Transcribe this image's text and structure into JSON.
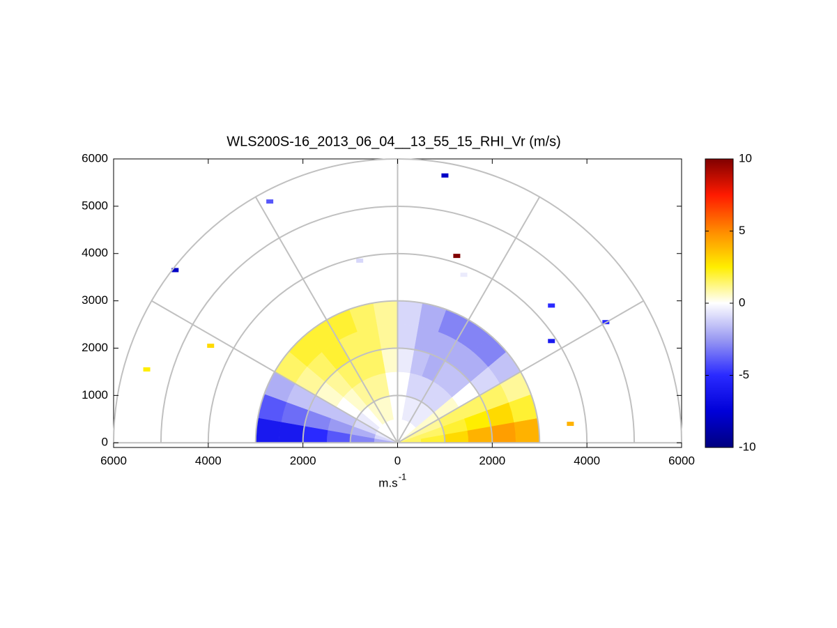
{
  "chart_data": {
    "type": "polar-heatmap",
    "title": "WLS200S-16_2013_06_04__13_55_15_RHI_Vr (m/s)",
    "xlabel": "m.s",
    "xlabel_sup": "-1",
    "xlim": [
      -6000,
      6000
    ],
    "ylim": [
      -100,
      6000
    ],
    "xticks": [
      {
        "value": -6000,
        "label": "6000"
      },
      {
        "value": -4000,
        "label": "4000"
      },
      {
        "value": -2000,
        "label": "2000"
      },
      0,
      2000,
      4000,
      6000
    ],
    "yticks": [
      0,
      1000,
      2000,
      3000,
      4000,
      5000,
      6000
    ],
    "rings": [
      1000,
      2000,
      3000,
      4000,
      5000,
      6000
    ],
    "spokes": [
      0,
      30,
      60,
      90,
      120,
      150,
      180
    ],
    "angles": [
      5,
      15,
      25,
      35,
      45,
      55,
      65,
      75,
      85,
      95,
      105,
      115,
      125,
      135,
      145,
      155,
      165,
      175
    ],
    "ranges": [
      250,
      750,
      1250,
      1750,
      2250,
      2750
    ],
    "angle_step": 10,
    "range_step": 500,
    "values": [
      [
        1.5,
        2,
        3,
        4,
        4.5,
        4
      ],
      [
        1.5,
        1.5,
        2,
        2.5,
        3,
        2
      ],
      [
        1,
        1,
        1.5,
        1.5,
        1.5,
        1
      ],
      [
        0.5,
        0.5,
        0.5,
        0,
        -1,
        -1.5
      ],
      [
        0,
        -0.5,
        -1,
        -1.5,
        -2,
        -3
      ],
      [
        0,
        -0.5,
        -1,
        -1.5,
        -2,
        -3
      ],
      [
        0,
        -0.5,
        -1,
        -2,
        -2,
        -3
      ],
      [
        0,
        -0.5,
        -1,
        -1.5,
        -2,
        -2
      ],
      [
        0,
        0,
        0,
        -0.5,
        -1,
        -1
      ],
      [
        0,
        0,
        0,
        0.5,
        1,
        1
      ],
      [
        0,
        0.5,
        1,
        1.5,
        1.5,
        1.5
      ],
      [
        0,
        0.5,
        1,
        1.5,
        1.5,
        2
      ],
      [
        0,
        0.5,
        1,
        1.5,
        2,
        2
      ],
      [
        0,
        0,
        0.5,
        1,
        1.5,
        2
      ],
      [
        0,
        -0.5,
        0,
        0.5,
        1,
        1.5
      ],
      [
        -0.5,
        -1,
        -1.5,
        -1.5,
        -1.5,
        -2
      ],
      [
        -1,
        -2,
        -2.5,
        -3,
        -3.5,
        -4
      ],
      [
        -2,
        -3,
        -4,
        -5,
        -6,
        -6
      ]
    ],
    "points": {
      "x": [
        -4700,
        -2700,
        1000,
        1250,
        -800,
        1400,
        4400,
        -5300,
        -3950,
        3250,
        3650,
        3250
      ],
      "y": [
        3650,
        5100,
        5650,
        3950,
        3850,
        3550,
        2550,
        1550,
        2050,
        2150,
        400,
        2900
      ],
      "values": [
        -8,
        -4,
        -8,
        10,
        -1,
        -0.5,
        -5,
        2.5,
        3,
        -6,
        4,
        -5
      ]
    },
    "clim": [
      -10,
      10
    ],
    "cticks": [
      -10,
      -5,
      0,
      5,
      10
    ],
    "colormap": [
      "#00007f",
      "#0000d8",
      "#2a2aff",
      "#9a9af2",
      "#ffffff",
      "#ffee00",
      "#ff8a00",
      "#ff1a00",
      "#800000"
    ],
    "grid_color": "#c0c0c0"
  }
}
